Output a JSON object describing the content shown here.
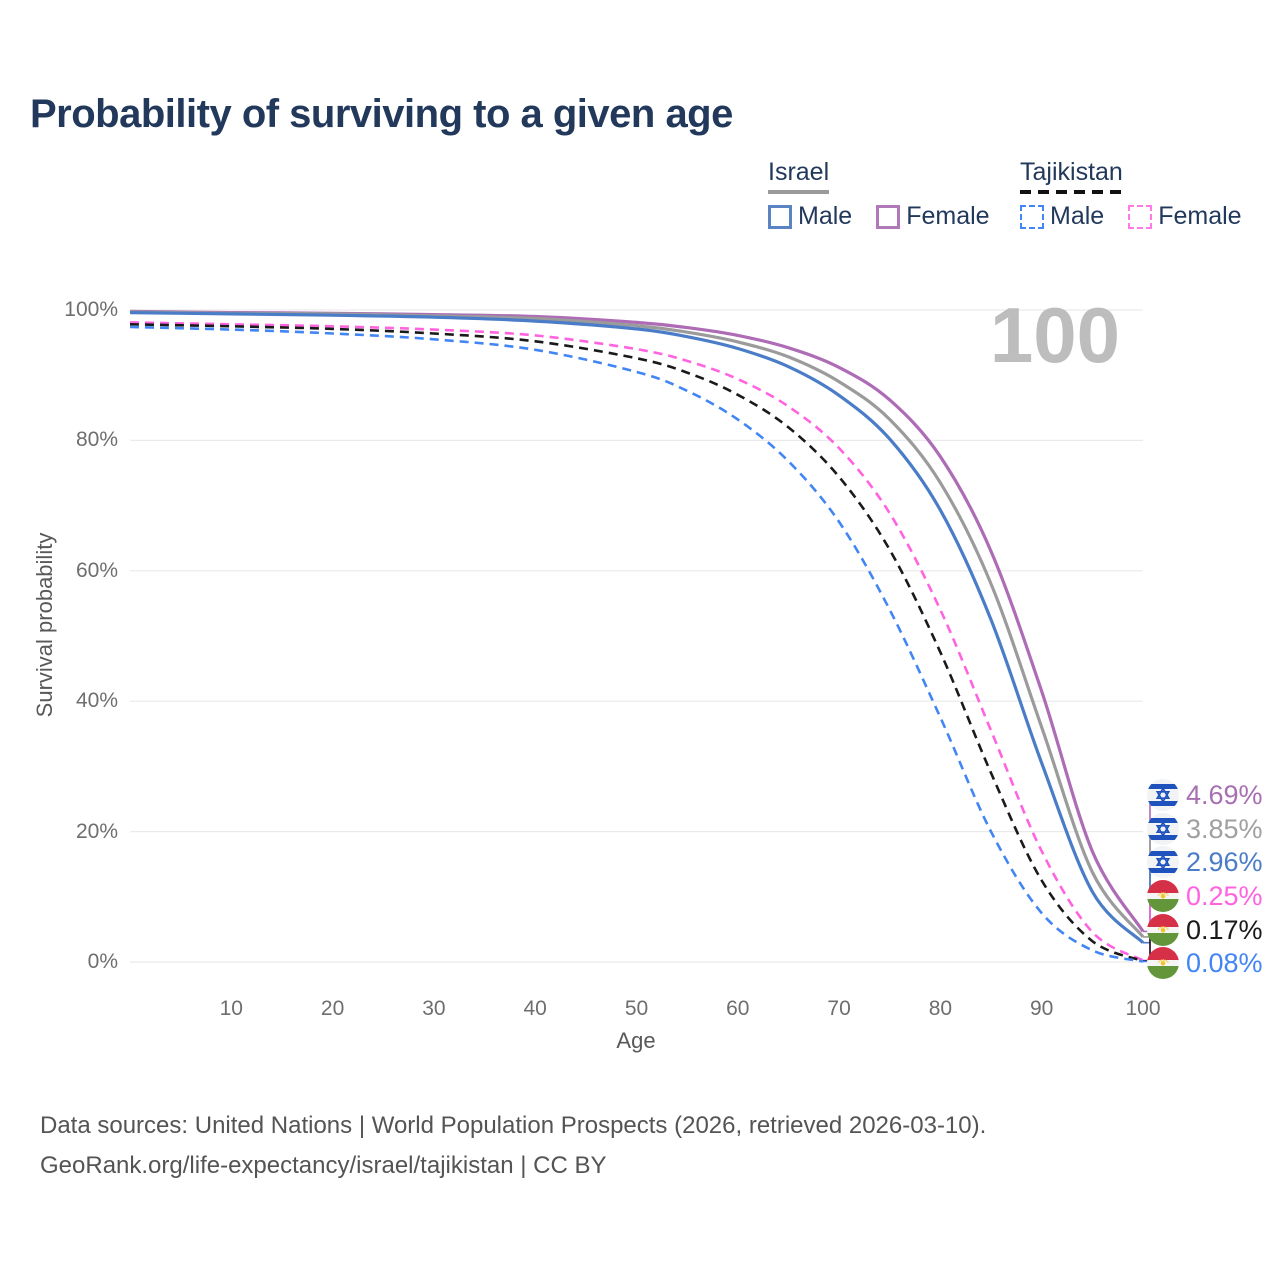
{
  "title": "Probability of surviving to a given age",
  "watermark": "100",
  "legend": {
    "groups": [
      {
        "label": "Israel",
        "underline": "solid",
        "items": [
          {
            "label": "Male",
            "color": "#5b84c4",
            "style": "solid"
          },
          {
            "label": "Female",
            "color": "#b07ab8",
            "style": "solid"
          }
        ]
      },
      {
        "label": "Tajikistan",
        "underline": "dashed",
        "items": [
          {
            "label": "Male",
            "color": "#4285f4",
            "style": "dashed"
          },
          {
            "label": "Female",
            "color": "#ff7ae6",
            "style": "dashed"
          }
        ]
      }
    ]
  },
  "chart_data": {
    "type": "line",
    "title": "Probability of surviving to a given age",
    "xlabel": "Age",
    "ylabel": "Survival probability",
    "xlim": [
      0,
      100
    ],
    "ylim": [
      0,
      100
    ],
    "grid": "horizontal-only",
    "legend_position": "top-right",
    "x_ticks": [
      10,
      20,
      30,
      40,
      50,
      60,
      70,
      80,
      90,
      100
    ],
    "y_ticks": [
      {
        "v": 0,
        "label": "0%"
      },
      {
        "v": 20,
        "label": "20%"
      },
      {
        "v": 40,
        "label": "40%"
      },
      {
        "v": 60,
        "label": "60%"
      },
      {
        "v": 80,
        "label": "80%"
      },
      {
        "v": 100,
        "label": "100%"
      }
    ],
    "x": [
      0,
      10,
      20,
      30,
      40,
      50,
      55,
      60,
      65,
      70,
      75,
      80,
      85,
      90,
      95,
      100
    ],
    "series": [
      {
        "name": "Israel Female",
        "country": "Israel",
        "sex": "Female",
        "style": "solid",
        "color": "#ad6cb5",
        "label_color": "#a76fb2",
        "end_value": "4.69%",
        "flag": "israel",
        "values": [
          99.8,
          99.6,
          99.5,
          99.3,
          99.0,
          98.1,
          97.3,
          96.1,
          94.2,
          91.2,
          86.2,
          77.5,
          63.0,
          41.5,
          17.0,
          4.69
        ]
      },
      {
        "name": "Israel Both sexes",
        "country": "Israel",
        "sex": "Both sexes",
        "style": "solid",
        "color": "#9b9b9b",
        "label_color": "#a0a0a0",
        "end_value": "3.85%",
        "flag": "israel",
        "values": [
          99.7,
          99.5,
          99.4,
          99.1,
          98.7,
          97.6,
          96.6,
          95.1,
          92.8,
          89.0,
          83.2,
          73.5,
          58.0,
          36.0,
          13.8,
          3.85
        ]
      },
      {
        "name": "Israel Male",
        "country": "Israel",
        "sex": "Male",
        "style": "solid",
        "color": "#4a7cc7",
        "label_color": "#4a7cc7",
        "end_value": "2.96%",
        "flag": "israel",
        "values": [
          99.6,
          99.4,
          99.2,
          98.9,
          98.3,
          97.1,
          95.9,
          94.1,
          91.3,
          86.9,
          80.2,
          69.3,
          52.5,
          30.5,
          10.8,
          2.96
        ]
      },
      {
        "name": "Tajikistan Female",
        "country": "Tajikistan",
        "sex": "Female",
        "style": "dashed",
        "color": "#ff63e0",
        "label_color": "#ff63e0",
        "end_value": "0.25%",
        "flag": "tajikistan",
        "values": [
          98.1,
          97.8,
          97.5,
          97.0,
          96.1,
          94.0,
          92.2,
          89.4,
          85.2,
          78.8,
          68.8,
          54.0,
          35.5,
          17.0,
          4.6,
          0.25
        ]
      },
      {
        "name": "Tajikistan Both sexes",
        "country": "Tajikistan",
        "sex": "Both sexes",
        "style": "dashed",
        "color": "#1a1a1a",
        "label_color": "#1a1a1a",
        "end_value": "0.17%",
        "flag": "tajikistan",
        "values": [
          97.8,
          97.5,
          97.1,
          96.4,
          95.2,
          92.6,
          90.4,
          87.0,
          82.0,
          74.4,
          63.2,
          47.5,
          29.0,
          12.5,
          3.2,
          0.17
        ]
      },
      {
        "name": "Tajikistan Male",
        "country": "Tajikistan",
        "sex": "Male",
        "style": "dashed",
        "color": "#4285f4",
        "label_color": "#4285f4",
        "end_value": "0.08%",
        "flag": "tajikistan",
        "values": [
          97.4,
          97.0,
          96.4,
          95.5,
          93.9,
          90.5,
          87.6,
          83.2,
          76.8,
          67.5,
          54.0,
          37.5,
          20.0,
          7.5,
          1.8,
          0.08
        ]
      }
    ]
  },
  "colors": {
    "grid": "#eaeaea",
    "title_text": "#22395c",
    "tick_text": "#6e6e6e",
    "watermark": "#bdbdbd",
    "israel_flag_blue": "#1f52bd",
    "tajikistan_red": "#d63048",
    "tajikistan_green": "#63953b",
    "tajikistan_yellow": "#f4c430"
  },
  "footer": {
    "line1": "Data sources: United Nations | World Population Prospects (2026, retrieved 2026-03-10).",
    "line2": "GeoRank.org/life-expectancy/israel/tajikistan | CC BY"
  }
}
